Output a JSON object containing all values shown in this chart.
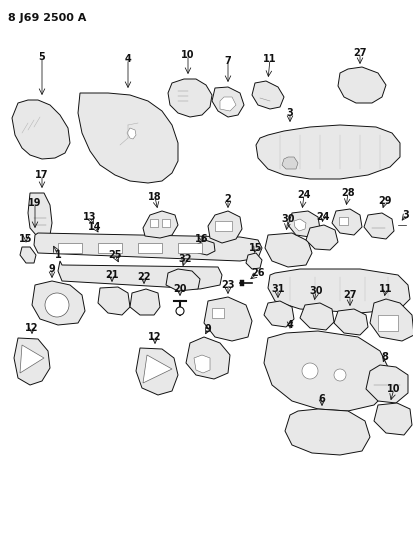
{
  "title": "8 J69 2500 A",
  "bg": "#ffffff",
  "fg": "#111111",
  "lw": 0.7,
  "fill": "#e8e8e8",
  "fig_w": 4.14,
  "fig_h": 5.33,
  "dpi": 100
}
